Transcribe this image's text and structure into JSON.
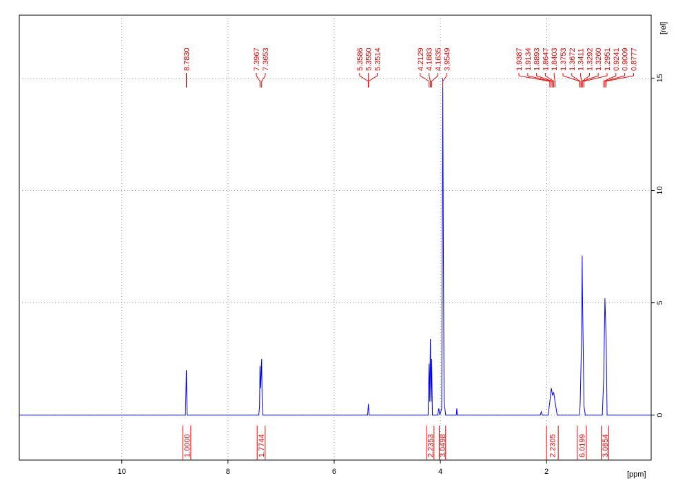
{
  "chart_data": {
    "type": "line",
    "xlabel": "[ppm]",
    "ylabel": "[rel]",
    "xlim": [
      11.93,
      0.03
    ],
    "ylim": [
      -2.0,
      17.8
    ],
    "xticks": [
      10,
      8,
      6,
      4,
      2
    ],
    "yticks": [
      0,
      5,
      10,
      15
    ],
    "grid": true,
    "x": [
      11.93,
      8.8,
      8.783,
      8.77,
      7.42,
      7.405,
      7.3967,
      7.385,
      7.3653,
      7.355,
      7.34,
      5.37,
      5.355,
      5.34,
      4.23,
      4.2129,
      4.2,
      4.1883,
      4.175,
      4.1635,
      4.15,
      4.05,
      4.03,
      4.01,
      3.975,
      3.9549,
      3.945,
      3.93,
      3.9,
      3.7,
      3.69,
      3.68,
      2.12,
      2.1,
      2.08,
      1.97,
      1.9387,
      1.91,
      1.8893,
      1.8647,
      1.8403,
      1.8,
      1.38,
      1.3672,
      1.3411,
      1.3292,
      1.326,
      1.2951,
      1.27,
      0.95,
      0.9241,
      0.9009,
      0.8777,
      0.86,
      0.03
    ],
    "series": [
      {
        "name": "spectrum",
        "color": "#0000ff",
        "values": [
          0,
          0,
          2.0,
          0,
          0,
          0.4,
          2.2,
          1.2,
          2.5,
          0.4,
          0,
          0,
          0.5,
          0,
          0,
          2.3,
          0.6,
          3.4,
          0.6,
          2.5,
          0,
          0,
          0.3,
          0,
          0.3,
          15,
          8.5,
          0.6,
          0,
          0,
          0.3,
          0,
          0,
          0.15,
          0,
          0,
          0.6,
          1.2,
          0.9,
          1.0,
          0.6,
          0,
          0,
          0.5,
          3.3,
          7.1,
          5.9,
          0.4,
          0,
          0,
          1.6,
          5.2,
          3.4,
          0,
          0
        ]
      }
    ],
    "label_color": "#ff0000",
    "peaks": [
      {
        "value": 8.783,
        "label": "8.7830"
      },
      {
        "value": 7.3967,
        "label": "7.3967"
      },
      {
        "value": 7.3653,
        "label": "7.3653"
      },
      {
        "value": 5.3586,
        "label": "5.3586"
      },
      {
        "value": 5.355,
        "label": "5.3550"
      },
      {
        "value": 5.3514,
        "label": "5.3514"
      },
      {
        "value": 4.2129,
        "label": "4.2129"
      },
      {
        "value": 4.1883,
        "label": "4.1883"
      },
      {
        "value": 4.1635,
        "label": "4.1635"
      },
      {
        "value": 3.9549,
        "label": "3.9549"
      },
      {
        "value": 1.9387,
        "label": "1.9387"
      },
      {
        "value": 1.9134,
        "label": "1.9134"
      },
      {
        "value": 1.8893,
        "label": "1.8893"
      },
      {
        "value": 1.8647,
        "label": "1.8647"
      },
      {
        "value": 1.8403,
        "label": "1.8403"
      },
      {
        "value": 1.3753,
        "label": "1.3753"
      },
      {
        "value": 1.3672,
        "label": "1.3672"
      },
      {
        "value": 1.3411,
        "label": "1.3411"
      },
      {
        "value": 1.3292,
        "label": "1.3292"
      },
      {
        "value": 1.326,
        "label": "1.3260"
      },
      {
        "value": 1.2951,
        "label": "1.2951"
      },
      {
        "value": 0.9241,
        "label": "0.9241"
      },
      {
        "value": 0.9009,
        "label": "0.9009"
      },
      {
        "value": 0.8777,
        "label": "0.8777"
      }
    ],
    "integrals": [
      {
        "value": 1,
        "label": "1.0000",
        "from": 8.85,
        "to": 8.7
      },
      {
        "value": 1.7744,
        "label": "1.7744",
        "from": 7.45,
        "to": 7.3
      },
      {
        "value": 2.2353,
        "label": "2.2353",
        "from": 4.26,
        "to": 4.12
      },
      {
        "value": 3.0498,
        "label": "3.0498",
        "from": 4.02,
        "to": 3.9
      },
      {
        "value": 2.2305,
        "label": "2.2305",
        "from": 2.0,
        "to": 1.78
      },
      {
        "value": 6.0199,
        "label": "6.0199",
        "from": 1.42,
        "to": 1.25
      },
      {
        "value": 3.0854,
        "label": "3.0854",
        "from": 0.97,
        "to": 0.83
      }
    ]
  }
}
